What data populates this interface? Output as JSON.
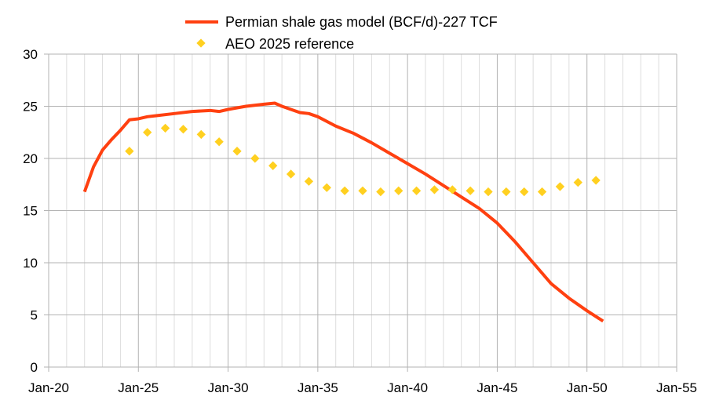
{
  "chart_data": {
    "type": "line",
    "title": "",
    "xlabel": "",
    "ylabel": "",
    "xlim": [
      2020,
      2055
    ],
    "ylim": [
      0,
      30
    ],
    "y_ticks": [
      0,
      5,
      10,
      15,
      20,
      25,
      30
    ],
    "y_tick_labels": [
      "0",
      "5",
      "10",
      "15",
      "20",
      "25",
      "30"
    ],
    "x_ticks": [
      2020,
      2025,
      2030,
      2035,
      2040,
      2045,
      2050,
      2055
    ],
    "x_tick_labels": [
      "Jan-20",
      "Jan-25",
      "Jan-30",
      "Jan-35",
      "Jan-40",
      "Jan-45",
      "Jan-50",
      "Jan-55"
    ],
    "grid": true,
    "legend_position": "top-center",
    "series": [
      {
        "name": "Permian shale gas model (BCF/d)-227 TCF",
        "style": "line",
        "color": "#ff4010",
        "x": [
          2022,
          2022.5,
          2023,
          2023.5,
          2024,
          2024.5,
          2025,
          2025.5,
          2026,
          2027,
          2028,
          2029,
          2029.5,
          2030,
          2031,
          2032,
          2032.6,
          2033,
          2033.5,
          2034,
          2034.5,
          2035,
          2036,
          2037,
          2038,
          2039,
          2040,
          2041,
          2042,
          2043,
          2044,
          2045,
          2046,
          2047,
          2048,
          2049,
          2050,
          2050.9
        ],
        "y": [
          16.8,
          19.2,
          20.8,
          21.8,
          22.7,
          23.7,
          23.8,
          24.0,
          24.1,
          24.3,
          24.5,
          24.6,
          24.5,
          24.7,
          25.0,
          25.2,
          25.3,
          25.0,
          24.7,
          24.4,
          24.3,
          24.0,
          23.1,
          22.4,
          21.5,
          20.5,
          19.5,
          18.5,
          17.4,
          16.3,
          15.2,
          13.8,
          12.0,
          10.0,
          8.0,
          6.6,
          5.4,
          4.4
        ]
      },
      {
        "name": "AEO 2025 reference",
        "style": "marker-diamond",
        "color": "#ffd020",
        "x": [
          2024.5,
          2025.5,
          2026.5,
          2027.5,
          2028.5,
          2029.5,
          2030.5,
          2031.5,
          2032.5,
          2033.5,
          2034.5,
          2035.5,
          2036.5,
          2037.5,
          2038.5,
          2039.5,
          2040.5,
          2041.5,
          2042.5,
          2043.5,
          2044.5,
          2045.5,
          2046.5,
          2047.5,
          2048.5,
          2049.5,
          2050.5
        ],
        "y": [
          20.7,
          22.5,
          22.9,
          22.8,
          22.3,
          21.6,
          20.7,
          20.0,
          19.3,
          18.5,
          17.8,
          17.2,
          16.9,
          16.9,
          16.8,
          16.9,
          16.9,
          17.0,
          17.0,
          16.9,
          16.8,
          16.8,
          16.8,
          16.8,
          17.3,
          17.7,
          17.9
        ]
      }
    ]
  }
}
